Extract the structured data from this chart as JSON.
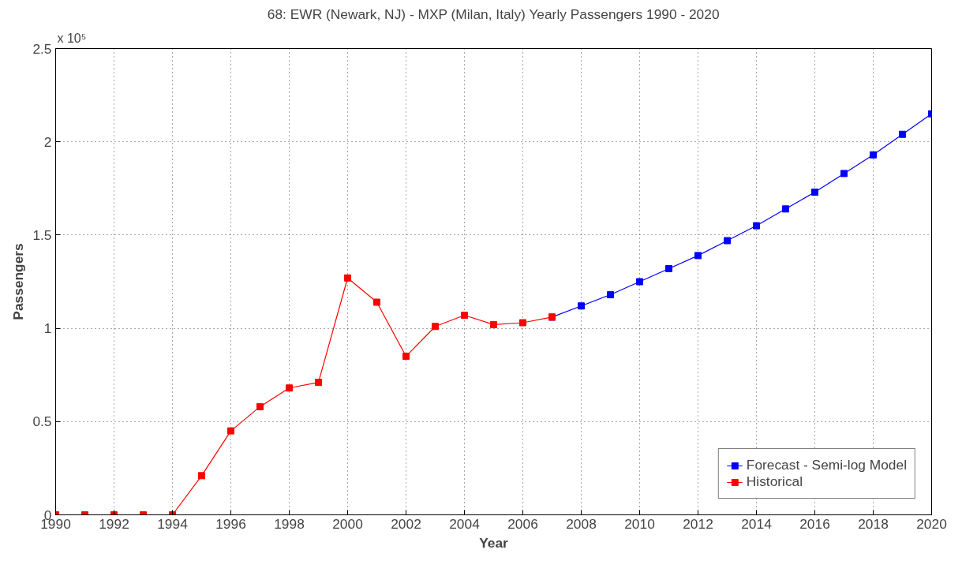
{
  "chart_data": {
    "type": "line",
    "title": "68: EWR (Newark, NJ) - MXP (Milan, Italy) Yearly Passengers 1990 - 2020",
    "xlabel": "Year",
    "ylabel": "Passengers",
    "annotations": [
      "x 10⁵"
    ],
    "series": [
      {
        "name": "Forecast - Semi-log Model",
        "color": "#0000ff",
        "x": [
          2007,
          2008,
          2009,
          2010,
          2011,
          2012,
          2013,
          2014,
          2015,
          2016,
          2017,
          2018,
          2019,
          2020
        ],
        "values": [
          1.06,
          1.12,
          1.18,
          1.25,
          1.32,
          1.39,
          1.47,
          1.55,
          1.64,
          1.73,
          1.83,
          1.93,
          2.04,
          2.15
        ]
      },
      {
        "name": "Historical",
        "color": "#ff0000",
        "x": [
          1990,
          1991,
          1992,
          1993,
          1994,
          1995,
          1996,
          1997,
          1998,
          1999,
          2000,
          2001,
          2002,
          2003,
          2004,
          2005,
          2006,
          2007
        ],
        "values": [
          0,
          0,
          0,
          0,
          0,
          0.21,
          0.45,
          0.58,
          0.68,
          0.71,
          1.27,
          1.14,
          0.85,
          1.01,
          1.07,
          1.02,
          1.03,
          1.06
        ]
      }
    ],
    "xlim": [
      1990,
      2020
    ],
    "xticks": [
      1990,
      1992,
      1994,
      1996,
      1998,
      2000,
      2002,
      2004,
      2006,
      2008,
      2010,
      2012,
      2014,
      2016,
      2018,
      2020
    ],
    "ylim": [
      0,
      2.5
    ],
    "yticks": [
      0,
      0.5,
      1,
      1.5,
      2,
      2.5
    ],
    "grid": true,
    "legend": "bottom right",
    "marker": "square",
    "line_style": "solid"
  }
}
